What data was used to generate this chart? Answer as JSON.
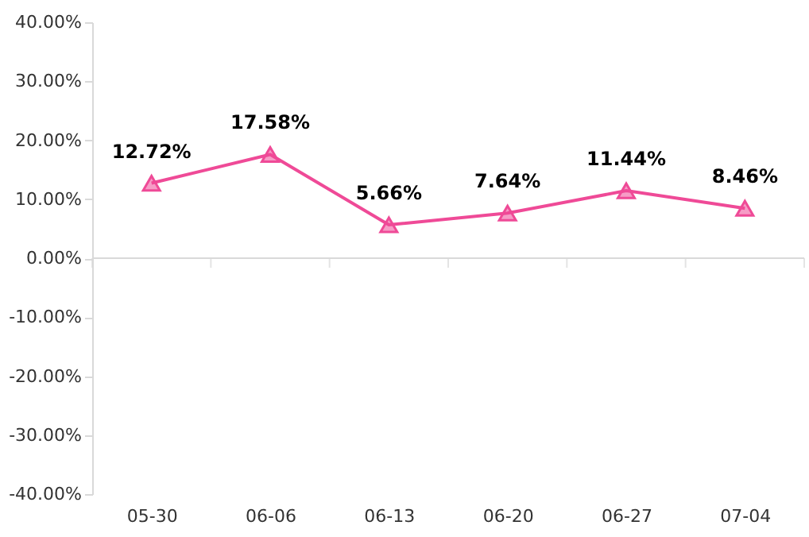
{
  "chart_data": {
    "type": "line",
    "categories": [
      "05-30",
      "06-06",
      "06-13",
      "06-20",
      "06-27",
      "07-04"
    ],
    "series": [
      {
        "color": "#ef4a97",
        "values": [
          12.72,
          17.58,
          5.66,
          7.64,
          11.44,
          8.46
        ],
        "value_labels": [
          "12.72%",
          "17.58%",
          "5.66%",
          "7.64%",
          "11.44%",
          "8.46%"
        ]
      }
    ],
    "ylim": [
      -40,
      40
    ],
    "yticks": [
      {
        "value": -40,
        "label": "-40.00%"
      },
      {
        "value": -30,
        "label": "-30.00%"
      },
      {
        "value": -20,
        "label": "-20.00%"
      },
      {
        "value": -10,
        "label": "-10.00%"
      },
      {
        "value": 0,
        "label": "0.00%"
      },
      {
        "value": 10,
        "label": "10.00%"
      },
      {
        "value": 20,
        "label": "20.00%"
      },
      {
        "value": 30,
        "label": "30.00%"
      },
      {
        "value": 40,
        "label": "40.00%"
      }
    ],
    "ref_lines": [
      {
        "axis": "y",
        "value": 0,
        "color": "#d9d9d9"
      }
    ],
    "marker": "triangle",
    "line_style": "solid",
    "grid": false
  }
}
